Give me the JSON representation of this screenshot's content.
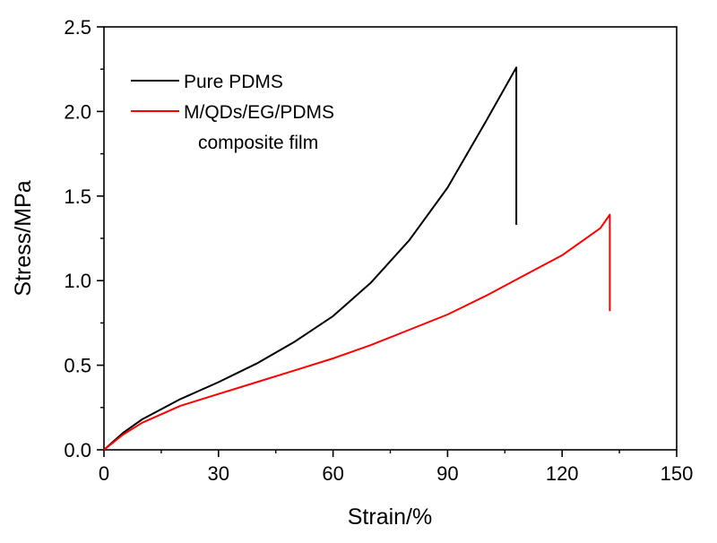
{
  "chart_data": {
    "type": "line",
    "xlabel": "Strain/%",
    "ylabel": "Stress/MPa",
    "xlim": [
      0,
      150
    ],
    "ylim": [
      0,
      2.5
    ],
    "x_ticks": [
      "0",
      "30",
      "60",
      "90",
      "120",
      "150"
    ],
    "y_ticks": [
      "0.0",
      "0.5",
      "1.0",
      "1.5",
      "2.0",
      "2.5"
    ],
    "grid": false,
    "legend_position": "top-left",
    "series": [
      {
        "name": "Pure PDMS",
        "color": "#000000",
        "x": [
          0,
          5,
          10,
          20,
          30,
          40,
          50,
          60,
          70,
          80,
          90,
          100,
          105,
          108,
          108
        ],
        "y": [
          0,
          0.1,
          0.18,
          0.3,
          0.4,
          0.51,
          0.64,
          0.79,
          0.99,
          1.24,
          1.55,
          1.94,
          2.14,
          2.26,
          1.33
        ]
      },
      {
        "name_lines": [
          "M/QDs/EG/PDMS",
          "composite film"
        ],
        "color": "#ff0000",
        "x": [
          0,
          5,
          10,
          20,
          30,
          40,
          50,
          60,
          70,
          80,
          90,
          100,
          110,
          120,
          130,
          132.5,
          132.5
        ],
        "y": [
          0,
          0.09,
          0.16,
          0.26,
          0.33,
          0.4,
          0.47,
          0.54,
          0.62,
          0.71,
          0.8,
          0.91,
          1.03,
          1.15,
          1.31,
          1.39,
          0.82
        ]
      }
    ]
  }
}
